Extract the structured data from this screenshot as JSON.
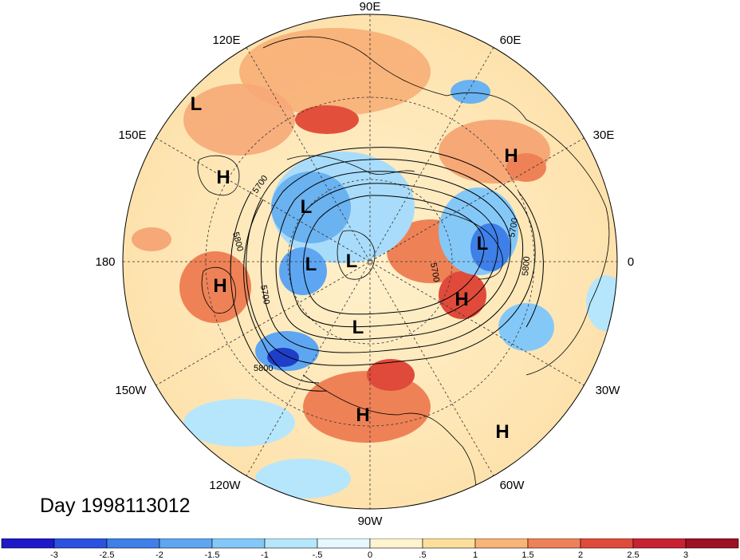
{
  "title": "Day 1998113012",
  "longitude_labels": {
    "lon_90e": "90E",
    "lon_60e": "60E",
    "lon_30e": "30E",
    "lon_0": "0",
    "lon_30w": "30W",
    "lon_60w": "60W",
    "lon_90w": "90W",
    "lon_120w": "120W",
    "lon_150w": "150W",
    "lon_180": "180",
    "lon_150e": "150E",
    "lon_120e": "120E"
  },
  "contour_labels": [
    "5700",
    "5800",
    "5700",
    "5700",
    "5800",
    "5800",
    "5700"
  ],
  "pressure_centers": [
    "L",
    "H",
    "H",
    "L",
    "L",
    "L",
    "H",
    "L",
    "H",
    "L",
    "H",
    "H"
  ],
  "colorbar": {
    "ticks": [
      "-3",
      "-2.5",
      "-2",
      "-1.5",
      "-1",
      "-.5",
      "0",
      ".5",
      "1",
      "1.5",
      "2",
      "2.5",
      "3"
    ],
    "colors": [
      "#1f18c8",
      "#2b52e0",
      "#3f7fe8",
      "#5ea6f2",
      "#84c8f8",
      "#b6e6fc",
      "#e6f8fe",
      "#fff4cf",
      "#fddf9c",
      "#f9b478",
      "#ee8256",
      "#e04a3a",
      "#c82232",
      "#9e1024"
    ]
  },
  "colors": {
    "ocean_warm": "#fde3b0",
    "cold_core": "#2f64d8",
    "warm_core": "#e8553c"
  }
}
